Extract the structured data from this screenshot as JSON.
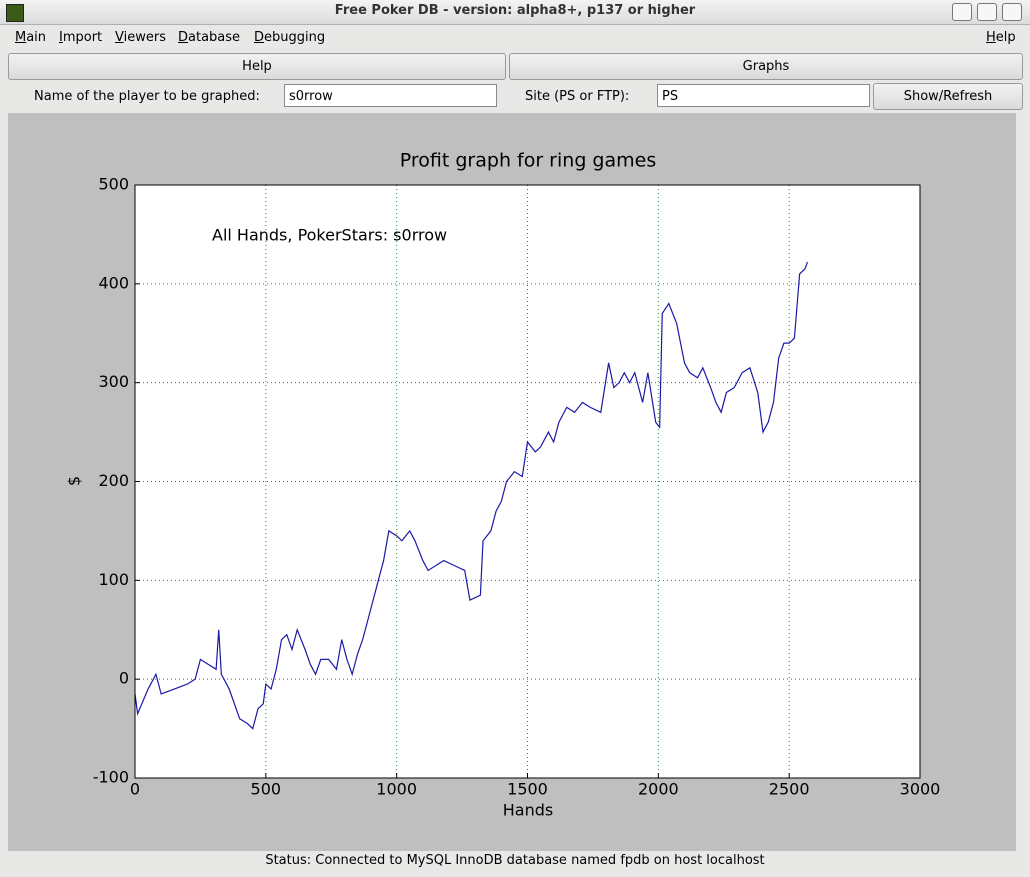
{
  "window": {
    "title": "Free Poker DB - version: alpha8+, p137 or higher"
  },
  "menu": [
    "Main",
    "Import",
    "Viewers",
    "Database",
    "Debugging"
  ],
  "menu_help": "Help",
  "tabs": [
    "Help",
    "Graphs"
  ],
  "form": {
    "player_label": "Name of the player to be graphed:",
    "player_value": "s0rrow",
    "site_label": "Site (PS or FTP):",
    "site_value": "PS",
    "button": "Show/Refresh"
  },
  "chart_data": {
    "type": "line",
    "title": "Profit graph for ring games",
    "annotation": "All Hands, PokerStars: s0rrow",
    "x_label": "Hands",
    "y_label": "$",
    "color": "#1a1aa6",
    "grid": true,
    "xlim": [
      0,
      3000
    ],
    "xticks": [
      0,
      500,
      1000,
      1500,
      2000,
      2500,
      3000
    ],
    "ylim": [
      -100,
      500
    ],
    "yticks": [
      -100,
      0,
      100,
      200,
      300,
      400,
      500
    ],
    "x": [
      0,
      10,
      50,
      80,
      100,
      150,
      200,
      230,
      250,
      280,
      310,
      320,
      330,
      360,
      400,
      430,
      450,
      470,
      490,
      500,
      520,
      540,
      560,
      580,
      600,
      620,
      650,
      670,
      690,
      710,
      740,
      770,
      790,
      810,
      830,
      850,
      870,
      900,
      930,
      950,
      970,
      1000,
      1020,
      1050,
      1070,
      1100,
      1120,
      1150,
      1180,
      1220,
      1260,
      1280,
      1320,
      1330,
      1360,
      1380,
      1400,
      1420,
      1450,
      1480,
      1500,
      1530,
      1550,
      1580,
      1600,
      1620,
      1650,
      1680,
      1710,
      1740,
      1780,
      1810,
      1830,
      1850,
      1870,
      1890,
      1910,
      1940,
      1960,
      1990,
      2005,
      2015,
      2040,
      2070,
      2100,
      2120,
      2150,
      2170,
      2200,
      2220,
      2240,
      2260,
      2290,
      2320,
      2350,
      2380,
      2400,
      2420,
      2440,
      2460,
      2480,
      2500,
      2520,
      2540,
      2560,
      2570
    ],
    "values": [
      -15,
      -35,
      -10,
      5,
      -15,
      -10,
      -5,
      0,
      20,
      15,
      10,
      50,
      5,
      -10,
      -40,
      -45,
      -50,
      -30,
      -25,
      -5,
      -10,
      10,
      40,
      45,
      30,
      50,
      30,
      15,
      5,
      20,
      20,
      10,
      40,
      20,
      5,
      25,
      40,
      70,
      100,
      120,
      150,
      145,
      140,
      150,
      140,
      120,
      110,
      115,
      120,
      115,
      110,
      80,
      85,
      140,
      150,
      170,
      180,
      200,
      210,
      205,
      240,
      230,
      235,
      250,
      240,
      260,
      275,
      270,
      280,
      275,
      270,
      320,
      295,
      300,
      310,
      300,
      310,
      280,
      310,
      260,
      255,
      370,
      380,
      360,
      320,
      310,
      305,
      315,
      295,
      280,
      270,
      290,
      295,
      310,
      315,
      290,
      250,
      260,
      280,
      325,
      340,
      340,
      345,
      410,
      415,
      422
    ]
  },
  "status": "Status: Connected to MySQL InnoDB database named fpdb on host localhost"
}
